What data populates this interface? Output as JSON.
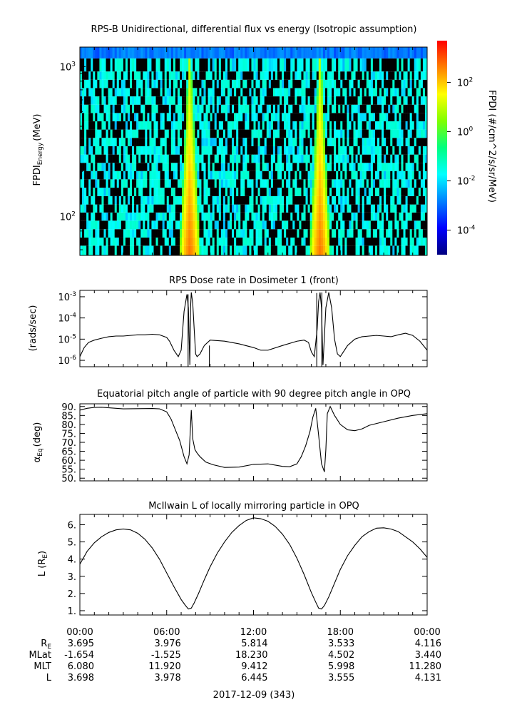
{
  "page": {
    "date_label": "2017-12-09 (343)"
  },
  "colors": {
    "background": "#ffffff",
    "curve": "#000000",
    "colorbar": [
      "#000080",
      "#0000ff",
      "#0080ff",
      "#00ffff",
      "#00ff80",
      "#80ff00",
      "#ffff00",
      "#ff8000",
      "#ff0000"
    ]
  },
  "chart_data": [
    {
      "type": "heatmap",
      "title": "RPS-B  Unidirectional, differential flux vs energy (Isotropic assumption)",
      "ylabel_main": "FPDI",
      "ylabel_sub": "Energy",
      "ylabel_unit": "(MeV)",
      "yscale": "log",
      "ylim": [
        55,
        1350
      ],
      "yticks": [
        {
          "value": 100,
          "base": "10",
          "exp": "2"
        },
        {
          "value": 1000,
          "base": "10",
          "exp": "3"
        }
      ],
      "x_hours": [
        0,
        24
      ],
      "z_scale": "log",
      "zlim": [
        1e-05,
        5000
      ],
      "colorbar_label": "FPDI (#/cm^2/s/sr/MeV)",
      "colorbar_ticks": [
        {
          "value": 0.0001,
          "base": "10",
          "exp": "-4"
        },
        {
          "value": 0.01,
          "base": "10",
          "exp": "-2"
        },
        {
          "value": 1,
          "base": "10",
          "exp": "0"
        },
        {
          "value": 100,
          "base": "10",
          "exp": "2"
        }
      ],
      "energy_bins_mev": [
        60,
        68,
        77,
        88,
        100,
        113,
        128,
        146,
        166,
        189,
        214,
        243,
        276,
        314,
        357,
        405,
        460,
        523,
        594,
        675,
        767,
        871,
        990,
        1300
      ],
      "belt_passes": [
        {
          "center_hour": 7.6,
          "peak_flux": 500,
          "top_energy_mev": 1100
        },
        {
          "center_hour": 16.6,
          "peak_flux": 500,
          "top_energy_mev": 1100
        }
      ],
      "background_flux": 0.02
    },
    {
      "type": "line",
      "title": "RPS  Dose rate in Dosimeter 1 (front)",
      "ylabel": "(rads/sec)",
      "yscale": "log",
      "ylim": [
        5e-07,
        0.002
      ],
      "yticks": [
        {
          "value": 1e-06,
          "base": "10",
          "exp": "-6"
        },
        {
          "value": 1e-05,
          "base": "10",
          "exp": "-5"
        },
        {
          "value": 0.0001,
          "base": "10",
          "exp": "-4"
        },
        {
          "value": 0.001,
          "base": "10",
          "exp": "-3"
        }
      ],
      "x": [
        0,
        0.3,
        0.6,
        1.0,
        1.5,
        2.0,
        2.5,
        3.0,
        3.5,
        4.0,
        4.5,
        5.0,
        5.5,
        6.0,
        6.2,
        6.5,
        6.8,
        7.0,
        7.2,
        7.4,
        7.5,
        7.6,
        7.65,
        7.7,
        7.8,
        7.9,
        8.0,
        8.1,
        8.3,
        8.6,
        9.0,
        10.0,
        11.0,
        12.0,
        12.5,
        13.0,
        14.0,
        15.0,
        15.5,
        15.8,
        16.0,
        16.2,
        16.4,
        16.5,
        16.6,
        16.7,
        16.8,
        17.0,
        17.2,
        17.4,
        17.6,
        17.8,
        18.0,
        18.5,
        19.0,
        19.5,
        20.0,
        20.5,
        21.0,
        21.5,
        22.0,
        22.5,
        23.0,
        23.5,
        24.0
      ],
      "y": [
        1.5e-06,
        4e-06,
        7e-06,
        9e-06,
        1.1e-05,
        1.3e-05,
        1.4e-05,
        1.4e-05,
        1.5e-05,
        1.6e-05,
        1.6e-05,
        1.7e-05,
        1.6e-05,
        1.2e-05,
        8e-06,
        3e-06,
        1.5e-06,
        3e-06,
        0.0002,
        0.0013,
        0.0003,
        6e-07,
        0.0003,
        0.0016,
        0.0005,
        3e-05,
        2e-06,
        1.5e-06,
        2e-06,
        5e-06,
        9e-06,
        8e-06,
        6e-06,
        4e-06,
        3e-06,
        3e-06,
        5e-06,
        8e-06,
        9e-06,
        7e-06,
        2.5e-06,
        1.5e-06,
        3e-05,
        0.0006,
        0.0016,
        0.0003,
        6e-07,
        0.0003,
        0.0016,
        0.0003,
        1e-05,
        2e-06,
        1.5e-06,
        5e-06,
        1e-05,
        1.3e-05,
        1.4e-05,
        1.5e-05,
        1.4e-05,
        1.3e-05,
        1.6e-05,
        1.9e-05,
        1.5e-05,
        8e-06,
        3e-06
      ],
      "spikes": [
        {
          "x": 7.48,
          "from": 0.0013,
          "to": 5e-07
        },
        {
          "x": 8.95,
          "from": 5e-06,
          "to": 5e-07
        },
        {
          "x": 16.37,
          "from": 0.0015,
          "to": 5e-07
        },
        {
          "x": 16.72,
          "from": 0.0016,
          "to": 5e-07
        }
      ]
    },
    {
      "type": "line",
      "title": "Equatorial pitch angle of particle with 90 degree pitch angle in OPQ",
      "ylabel_main": "α",
      "ylabel_sub": "Eq",
      "ylabel_unit": "(deg)",
      "ylim": [
        48.5,
        91.5
      ],
      "yticks": [
        50,
        55,
        60,
        65,
        70,
        75,
        80,
        85,
        90
      ],
      "ytick_labels": [
        "50.",
        "55.",
        "60.",
        "65.",
        "70.",
        "75.",
        "80.",
        "85.",
        "90."
      ],
      "x": [
        0,
        0.5,
        1.0,
        1.5,
        2.0,
        3.0,
        4.0,
        5.0,
        5.5,
        6.0,
        6.3,
        6.6,
        6.9,
        7.2,
        7.4,
        7.55,
        7.7,
        7.8,
        7.95,
        8.1,
        8.3,
        8.7,
        9.2,
        10.0,
        11.0,
        12.0,
        13.0,
        14.0,
        14.5,
        15.0,
        15.3,
        15.6,
        15.9,
        16.1,
        16.3,
        16.5,
        16.7,
        16.9,
        17.0,
        17.1,
        17.3,
        17.6,
        18.0,
        18.5,
        19.0,
        19.5,
        20.0,
        21.0,
        22.0,
        23.0,
        24.0
      ],
      "y": [
        88.0,
        89.0,
        89.5,
        89.6,
        89.3,
        88.7,
        88.8,
        88.9,
        88.7,
        87.0,
        83.0,
        77.0,
        71.0,
        62.0,
        58.0,
        63.0,
        88.0,
        72.0,
        66.0,
        64.0,
        62.0,
        59.0,
        57.5,
        56.0,
        56.2,
        57.7,
        58.0,
        56.6,
        56.4,
        58.0,
        62.0,
        68.0,
        76.0,
        84.0,
        89.0,
        74.0,
        58.0,
        53.5,
        66.0,
        86.0,
        90.0,
        85.0,
        80.0,
        77.0,
        76.5,
        77.5,
        79.5,
        81.5,
        83.5,
        85.0,
        86.0
      ]
    },
    {
      "type": "line",
      "title": "McIlwain L of locally mirroring particle in OPQ",
      "ylabel_main": "L (R",
      "ylabel_sub": "E",
      "ylabel_unit": ")",
      "ylim": [
        0.75,
        6.6
      ],
      "yticks": [
        1,
        2,
        3,
        4,
        5,
        6
      ],
      "ytick_labels": [
        "1.",
        "2.",
        "3.",
        "4.",
        "5.",
        "6."
      ],
      "x": [
        0,
        0.5,
        1.0,
        1.5,
        2.0,
        2.5,
        3.0,
        3.5,
        4.0,
        4.5,
        5.0,
        5.5,
        6.0,
        6.5,
        7.0,
        7.3,
        7.5,
        7.7,
        7.9,
        8.2,
        8.6,
        9.0,
        9.5,
        10.0,
        10.5,
        11.0,
        11.5,
        12.0,
        12.5,
        13.0,
        13.5,
        14.0,
        14.5,
        15.0,
        15.5,
        16.0,
        16.3,
        16.5,
        16.7,
        16.9,
        17.2,
        17.6,
        18.0,
        18.5,
        19.0,
        19.5,
        20.0,
        20.5,
        21.0,
        21.5,
        22.0,
        22.5,
        23.0,
        23.5,
        24.0
      ],
      "y": [
        3.7,
        4.45,
        4.95,
        5.3,
        5.55,
        5.7,
        5.75,
        5.7,
        5.5,
        5.15,
        4.65,
        4.0,
        3.2,
        2.4,
        1.65,
        1.3,
        1.1,
        1.15,
        1.45,
        2.0,
        2.8,
        3.55,
        4.35,
        5.0,
        5.55,
        5.95,
        6.25,
        6.4,
        6.35,
        6.2,
        5.9,
        5.45,
        4.85,
        4.05,
        3.1,
        2.05,
        1.5,
        1.15,
        1.1,
        1.3,
        1.8,
        2.6,
        3.4,
        4.2,
        4.8,
        5.3,
        5.6,
        5.8,
        5.82,
        5.75,
        5.6,
        5.3,
        5.0,
        4.6,
        4.1
      ]
    }
  ],
  "time_axis": {
    "ticks": [
      "00:00",
      "06:00",
      "12:00",
      "18:00",
      "00:00"
    ],
    "tick_hours": [
      0,
      6,
      12,
      18,
      24
    ]
  },
  "ephemeris": {
    "rows": [
      {
        "label_main": "R",
        "label_sub": "E",
        "values": [
          "3.695",
          "3.976",
          "5.814",
          "3.533",
          "4.116"
        ]
      },
      {
        "label_main": "MLat",
        "label_sub": "",
        "values": [
          "-1.654",
          "-1.525",
          "18.230",
          "4.502",
          "3.440"
        ]
      },
      {
        "label_main": "MLT",
        "label_sub": "",
        "values": [
          "6.080",
          "11.920",
          "9.412",
          "5.998",
          "11.280"
        ]
      },
      {
        "label_main": "L",
        "label_sub": "",
        "values": [
          "3.698",
          "3.978",
          "6.445",
          "3.555",
          "4.131"
        ]
      }
    ]
  }
}
